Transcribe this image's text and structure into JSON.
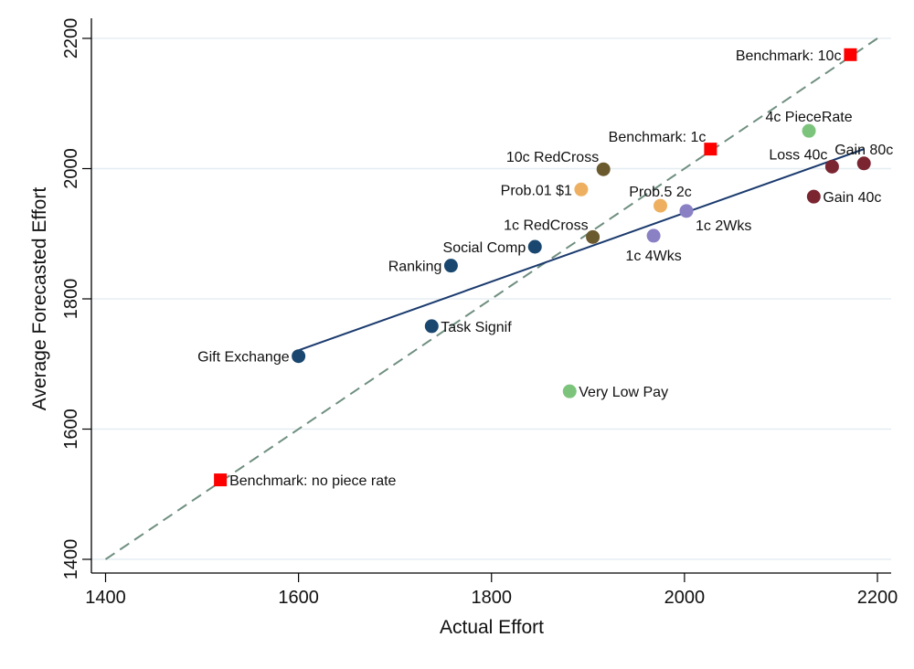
{
  "chart_data": {
    "type": "scatter",
    "xlabel": "Actual Effort",
    "ylabel": "Average Forecasted Effort",
    "xlim": [
      1400,
      2200
    ],
    "ylim": [
      1400,
      2200
    ],
    "xticks": [
      "1400",
      "1600",
      "1800",
      "2000",
      "2200"
    ],
    "yticks": [
      "1400",
      "1600",
      "1800",
      "2000",
      "2200"
    ],
    "grid": "horizontal",
    "reference_line": {
      "style": "dashed",
      "slope": 1,
      "intercept": 0,
      "color": "#6f8f80"
    },
    "fit_line": {
      "x": [
        1600,
        2186
      ],
      "y": [
        1721,
        2030
      ],
      "color": "#1a3a6e"
    },
    "points": [
      {
        "label": "Benchmark: 10c",
        "x": 2172,
        "y": 2175,
        "marker": "square",
        "color": "#ff0000",
        "label_pos": "left"
      },
      {
        "label": "4c PieceRate",
        "x": 2129,
        "y": 2058,
        "marker": "circle",
        "color": "#7cc47c",
        "label_pos": "top"
      },
      {
        "label": "Benchmark: 1c",
        "x": 2027,
        "y": 2030,
        "marker": "square",
        "color": "#ff0000",
        "label_pos": "top-left"
      },
      {
        "label": "10c RedCross",
        "x": 1916,
        "y": 1999,
        "marker": "circle",
        "color": "#6b5a2e",
        "label_pos": "top-left"
      },
      {
        "label": "Loss 40c",
        "x": 2153,
        "y": 2003,
        "marker": "circle",
        "color": "#7a2530",
        "label_pos": "top-left"
      },
      {
        "label": "Gain 80c",
        "x": 2186,
        "y": 2008,
        "marker": "circle",
        "color": "#7a2530",
        "label_pos": "top"
      },
      {
        "label": "Gain 40c",
        "x": 2134,
        "y": 1957,
        "marker": "circle",
        "color": "#7a2530",
        "label_pos": "right"
      },
      {
        "label": "Prob.01 $1",
        "x": 1893,
        "y": 1968,
        "marker": "circle",
        "color": "#eeb060",
        "label_pos": "left"
      },
      {
        "label": "Prob.5 2c",
        "x": 1975,
        "y": 1943,
        "marker": "circle",
        "color": "#eeb060",
        "label_pos": "top"
      },
      {
        "label": "1c 2Wks",
        "x": 2002,
        "y": 1935,
        "marker": "circle",
        "color": "#8a80c4",
        "label_pos": "bottom-right"
      },
      {
        "label": "1c 4Wks",
        "x": 1968,
        "y": 1897,
        "marker": "circle",
        "color": "#8a80c4",
        "label_pos": "bottom"
      },
      {
        "label": "1c RedCross",
        "x": 1905,
        "y": 1895,
        "marker": "circle",
        "color": "#6b5a2e",
        "label_pos": "top-left"
      },
      {
        "label": "Social Comp",
        "x": 1845,
        "y": 1880,
        "marker": "circle",
        "color": "#1a476f",
        "label_pos": "left"
      },
      {
        "label": "Ranking",
        "x": 1758,
        "y": 1851,
        "marker": "circle",
        "color": "#1a476f",
        "label_pos": "left"
      },
      {
        "label": "Task Signif",
        "x": 1738,
        "y": 1758,
        "marker": "circle",
        "color": "#1a476f",
        "label_pos": "right"
      },
      {
        "label": "Gift Exchange",
        "x": 1600,
        "y": 1712,
        "marker": "circle",
        "color": "#1a476f",
        "label_pos": "left"
      },
      {
        "label": "Very Low Pay",
        "x": 1881,
        "y": 1658,
        "marker": "circle",
        "color": "#7cc47c",
        "label_pos": "right"
      },
      {
        "label": "Benchmark: no piece rate",
        "x": 1519,
        "y": 1522,
        "marker": "square",
        "color": "#ff0000",
        "label_pos": "right"
      }
    ]
  }
}
